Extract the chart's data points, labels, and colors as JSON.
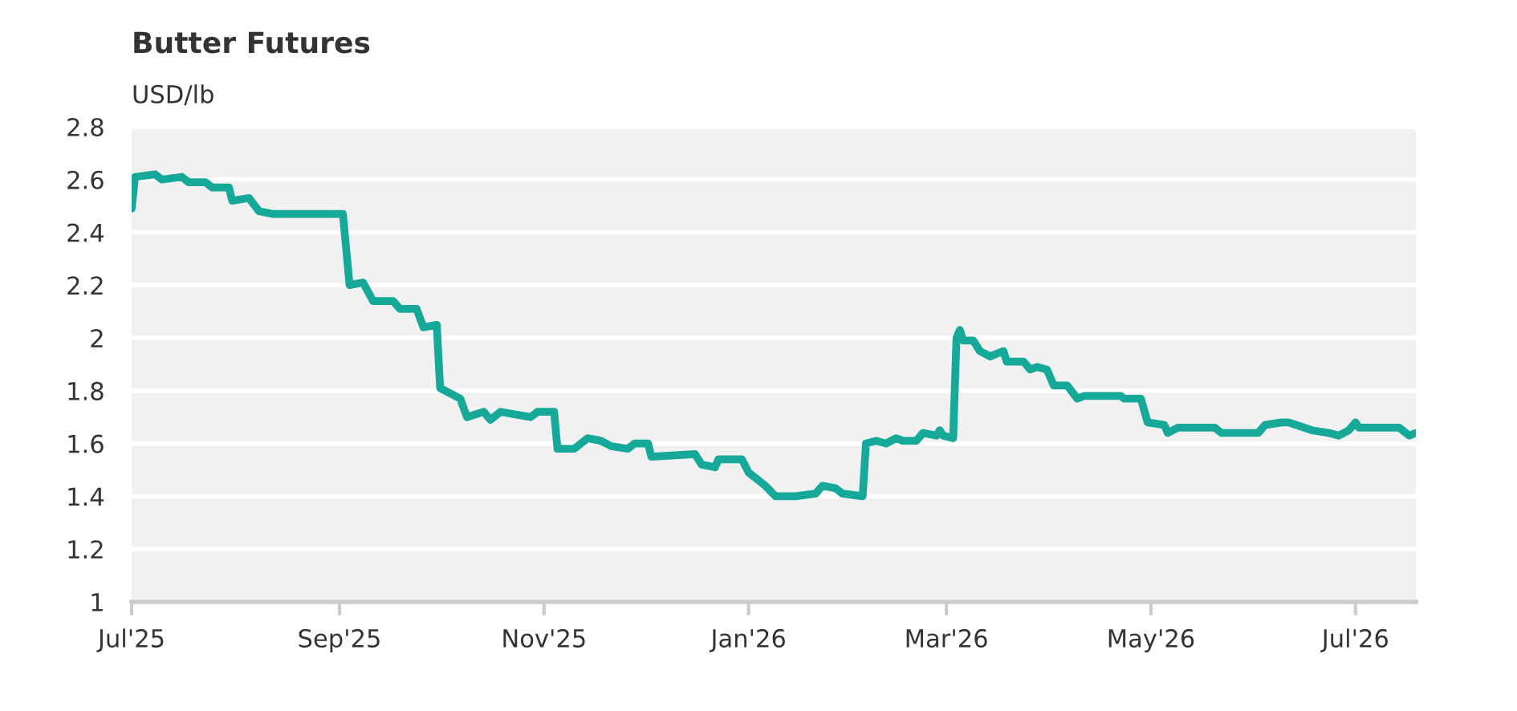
{
  "chart_data": {
    "type": "line",
    "title": "Butter Futures",
    "ylabel": "USD/lb",
    "x": [
      "2025-07-01",
      "2025-07-02",
      "2025-07-08",
      "2025-07-10",
      "2025-07-16",
      "2025-07-18",
      "2025-07-23",
      "2025-07-25",
      "2025-07-30",
      "2025-07-31",
      "2025-08-05",
      "2025-08-08",
      "2025-08-12",
      "2025-08-18",
      "2025-09-02",
      "2025-09-04",
      "2025-09-08",
      "2025-09-11",
      "2025-09-17",
      "2025-09-19",
      "2025-09-24",
      "2025-09-26",
      "2025-09-30",
      "2025-10-01",
      "2025-10-07",
      "2025-10-09",
      "2025-10-14",
      "2025-10-16",
      "2025-10-19",
      "2025-10-28",
      "2025-10-30",
      "2025-11-04",
      "2025-11-05",
      "2025-11-10",
      "2025-11-14",
      "2025-11-18",
      "2025-11-21",
      "2025-11-26",
      "2025-11-28",
      "2025-12-02",
      "2025-12-03",
      "2025-12-16",
      "2025-12-18",
      "2025-12-22",
      "2025-12-23",
      "2025-12-30",
      "2026-01-01",
      "2026-01-06",
      "2026-01-09",
      "2026-01-15",
      "2026-01-21",
      "2026-01-23",
      "2026-01-27",
      "2026-01-29",
      "2026-02-04",
      "2026-02-05",
      "2026-02-08",
      "2026-02-11",
      "2026-02-14",
      "2026-02-16",
      "2026-02-20",
      "2026-02-22",
      "2026-02-26",
      "2026-02-27",
      "2026-02-28",
      "2026-03-03",
      "2026-03-04",
      "2026-03-05",
      "2026-03-06",
      "2026-03-09",
      "2026-03-11",
      "2026-03-14",
      "2026-03-18",
      "2026-03-19",
      "2026-03-24",
      "2026-03-26",
      "2026-03-28",
      "2026-03-31",
      "2026-04-02",
      "2026-04-06",
      "2026-04-09",
      "2026-04-11",
      "2026-04-22",
      "2026-04-23",
      "2026-04-28",
      "2026-04-30",
      "2026-05-05",
      "2026-05-06",
      "2026-05-09",
      "2026-05-20",
      "2026-05-22",
      "2026-06-02",
      "2026-06-04",
      "2026-06-09",
      "2026-06-11",
      "2026-06-18",
      "2026-06-23",
      "2026-06-26",
      "2026-06-29",
      "2026-07-01",
      "2026-07-02",
      "2026-07-14",
      "2026-07-17",
      "2026-07-19"
    ],
    "series": [
      {
        "color": "#16a99a",
        "values": [
          2.49,
          2.61,
          2.62,
          2.6,
          2.61,
          2.59,
          2.59,
          2.57,
          2.57,
          2.52,
          2.53,
          2.48,
          2.47,
          2.47,
          2.47,
          2.2,
          2.21,
          2.14,
          2.14,
          2.11,
          2.11,
          2.04,
          2.05,
          1.81,
          1.77,
          1.7,
          1.72,
          1.69,
          1.72,
          1.7,
          1.72,
          1.72,
          1.58,
          1.58,
          1.62,
          1.61,
          1.59,
          1.58,
          1.6,
          1.6,
          1.55,
          1.56,
          1.52,
          1.51,
          1.54,
          1.54,
          1.49,
          1.44,
          1.4,
          1.4,
          1.41,
          1.44,
          1.43,
          1.41,
          1.4,
          1.6,
          1.61,
          1.6,
          1.62,
          1.61,
          1.61,
          1.64,
          1.63,
          1.65,
          1.63,
          1.62,
          2.0,
          2.03,
          1.99,
          1.99,
          1.95,
          1.93,
          1.95,
          1.91,
          1.91,
          1.88,
          1.89,
          1.88,
          1.82,
          1.82,
          1.77,
          1.78,
          1.78,
          1.77,
          1.77,
          1.68,
          1.67,
          1.64,
          1.66,
          1.66,
          1.64,
          1.64,
          1.67,
          1.68,
          1.68,
          1.65,
          1.64,
          1.63,
          1.65,
          1.68,
          1.66,
          1.66,
          1.63,
          1.64
        ]
      }
    ],
    "xlim": [
      "2025-07-01",
      "2026-07-19"
    ],
    "xticks": [
      {
        "value": "2025-07-01",
        "label": "Jul'25"
      },
      {
        "value": "2025-09-01",
        "label": "Sep'25"
      },
      {
        "value": "2025-11-01",
        "label": "Nov'25"
      },
      {
        "value": "2026-01-01",
        "label": "Jan'26"
      },
      {
        "value": "2026-03-01",
        "label": "Mar'26"
      },
      {
        "value": "2026-05-01",
        "label": "May'26"
      },
      {
        "value": "2026-07-01",
        "label": "Jul'26"
      }
    ],
    "ylim": [
      1,
      2.8
    ],
    "yticks": [
      1,
      1.2,
      1.4,
      1.6,
      1.8,
      2,
      2.2,
      2.4,
      2.6,
      2.8
    ],
    "grid": "y",
    "legend": false,
    "marker": "none",
    "line_style": "solid"
  }
}
